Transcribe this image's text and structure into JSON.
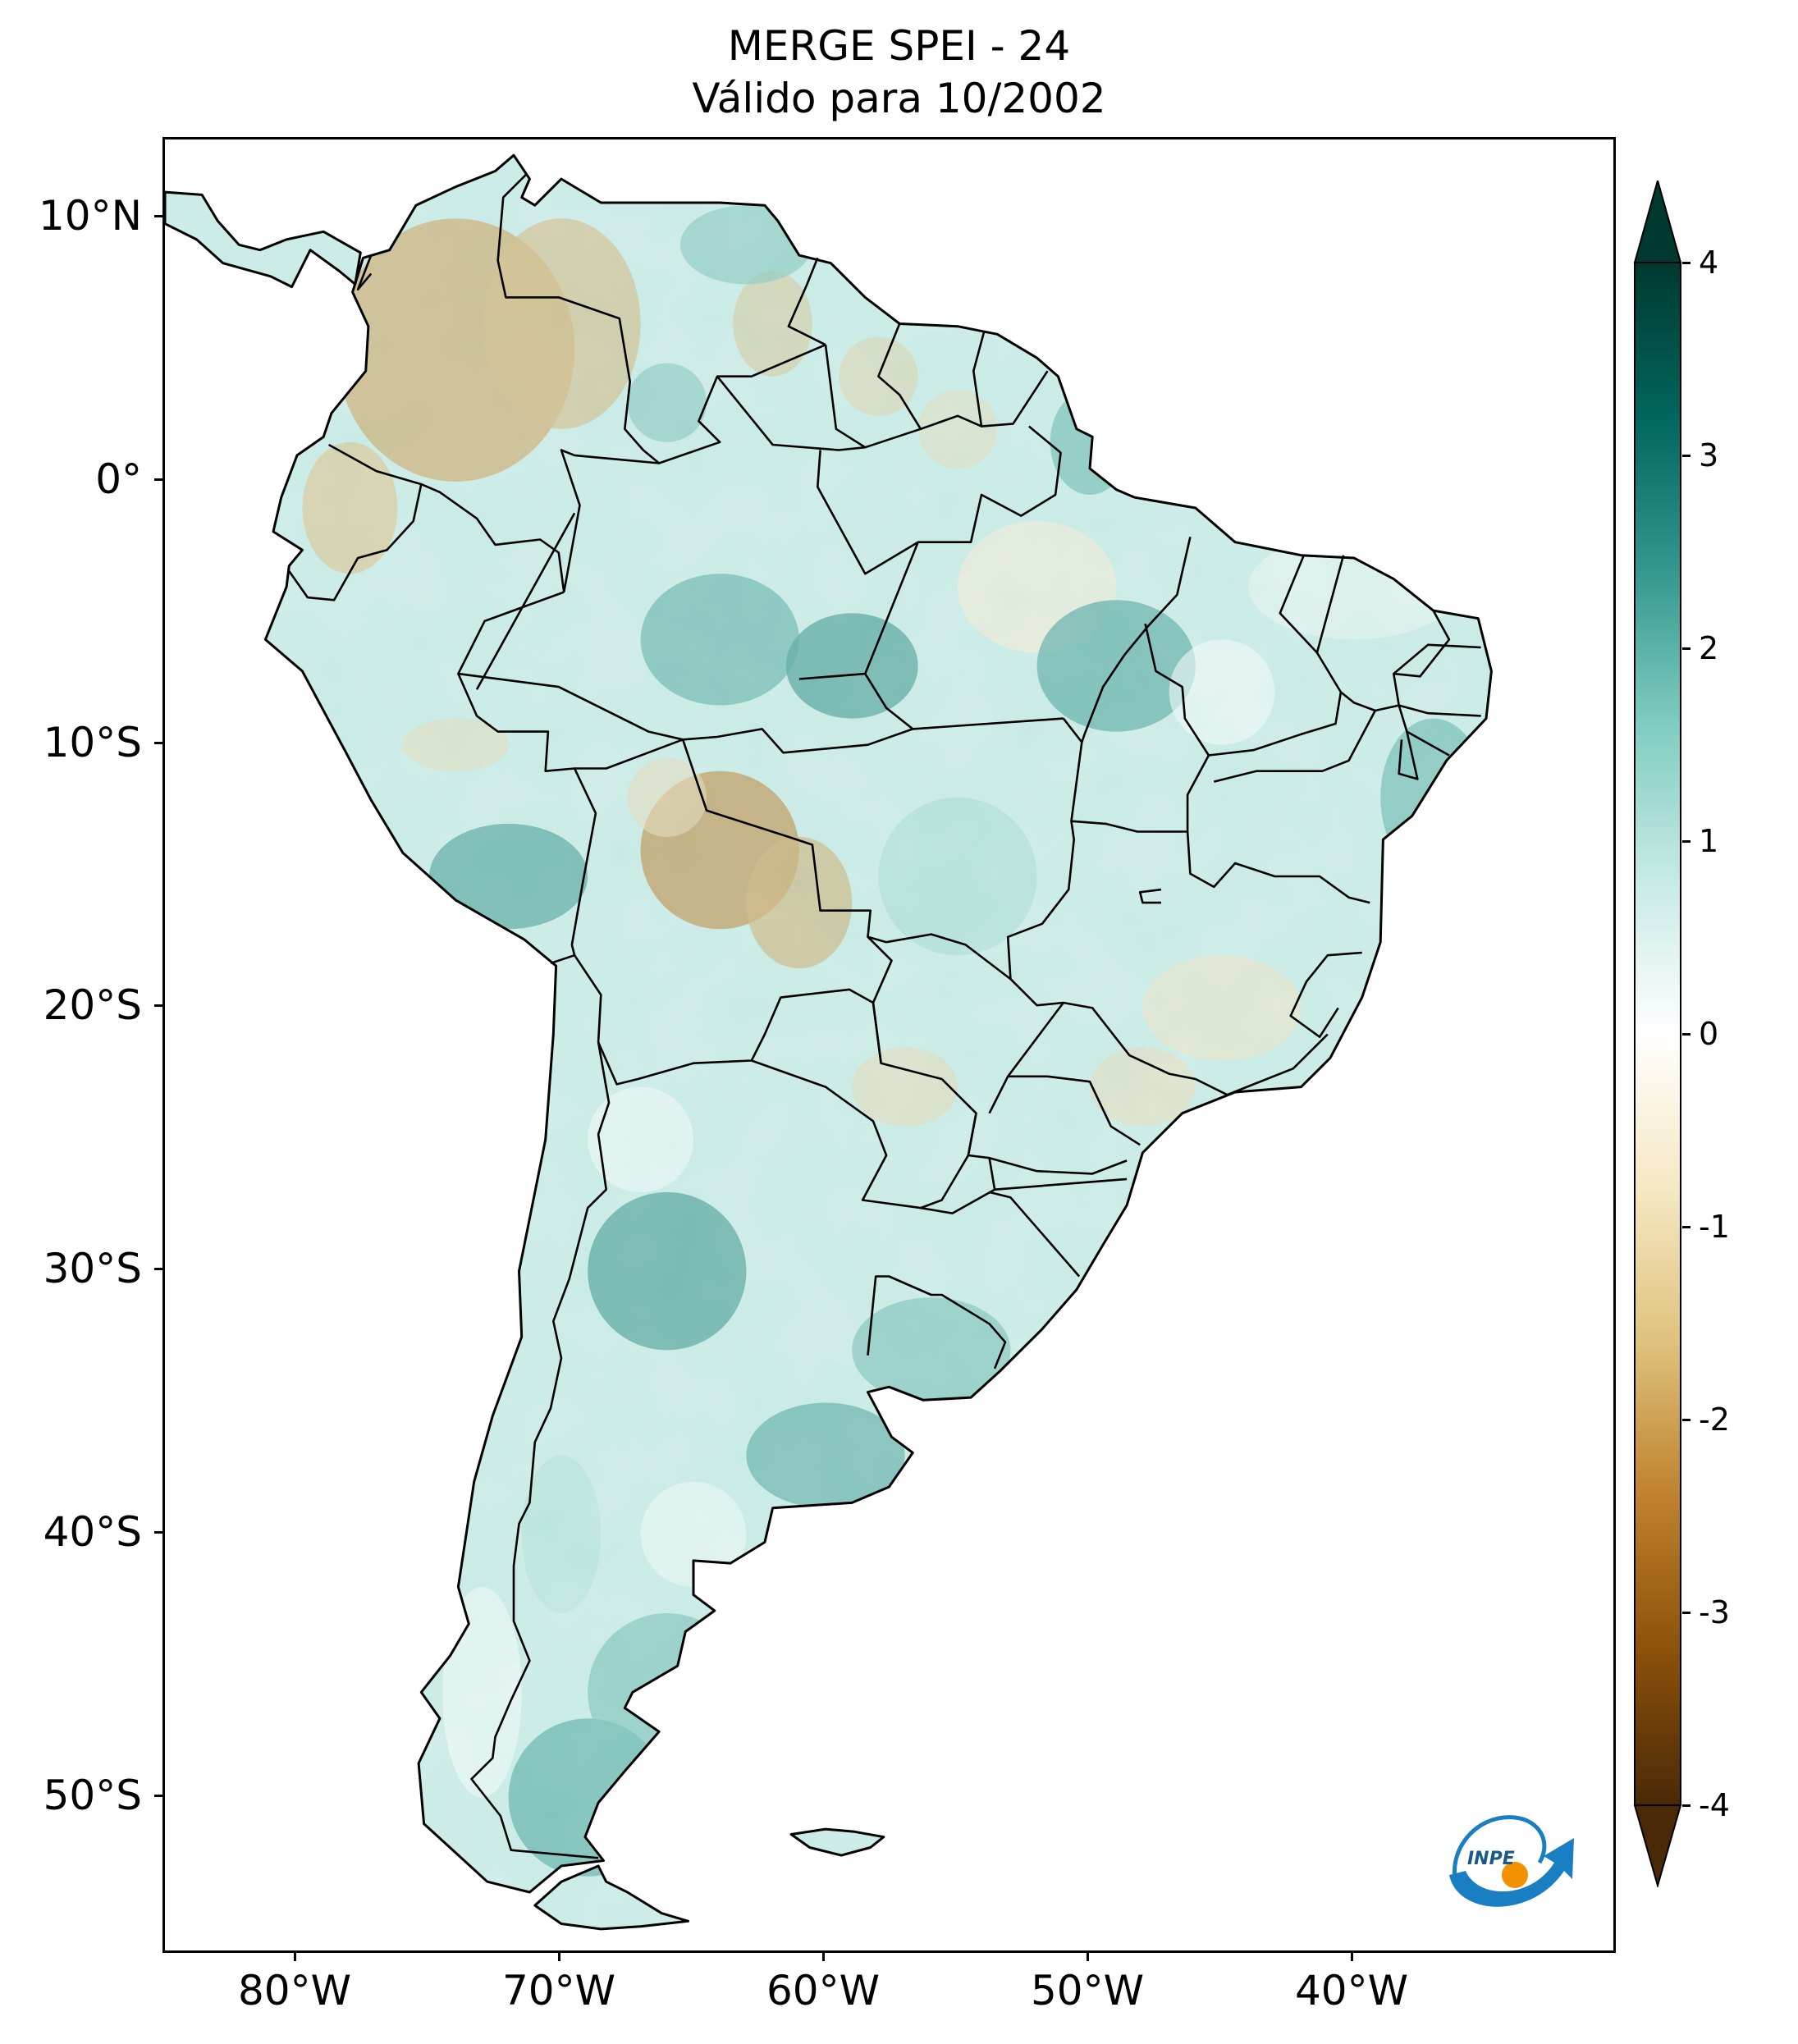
{
  "title": {
    "line1": "MERGE   SPEI - 24",
    "line2": "Válido para 10/2002"
  },
  "axes": {
    "lat_labels": [
      "10°N",
      "0°",
      "10°S",
      "20°S",
      "30°S",
      "40°S",
      "50°S"
    ],
    "lon_labels": [
      "80°W",
      "70°W",
      "60°W",
      "50°W",
      "40°W"
    ],
    "lat_values": [
      10,
      0,
      -10,
      -20,
      -30,
      -40,
      -50
    ],
    "lon_values": [
      -80,
      -70,
      -60,
      -50,
      -40
    ],
    "lon_range": [
      -85,
      -30
    ],
    "lat_range": [
      -56,
      13
    ]
  },
  "colorbar": {
    "labels": [
      "4",
      "3",
      "2",
      "1",
      "0",
      "-1",
      "-2",
      "-3",
      "-4"
    ],
    "values": [
      4,
      3,
      2,
      1,
      0,
      -1,
      -2,
      -3,
      -4
    ],
    "range": [
      -4,
      4
    ],
    "extend": "both",
    "colormap": "BrBG",
    "colors": [
      "#4a2906",
      "#8c510a",
      "#bf812d",
      "#dfc27d",
      "#f6e8c3",
      "#ffffff",
      "#c7eae5",
      "#80cdc1",
      "#35978f",
      "#01665e",
      "#00392f"
    ]
  },
  "logo": {
    "text": "INPE",
    "accent": "#1a7fc2",
    "dot": "#f39200"
  },
  "map": {
    "region": "South America",
    "background": "#ffffff",
    "outline_color": "#000000"
  }
}
